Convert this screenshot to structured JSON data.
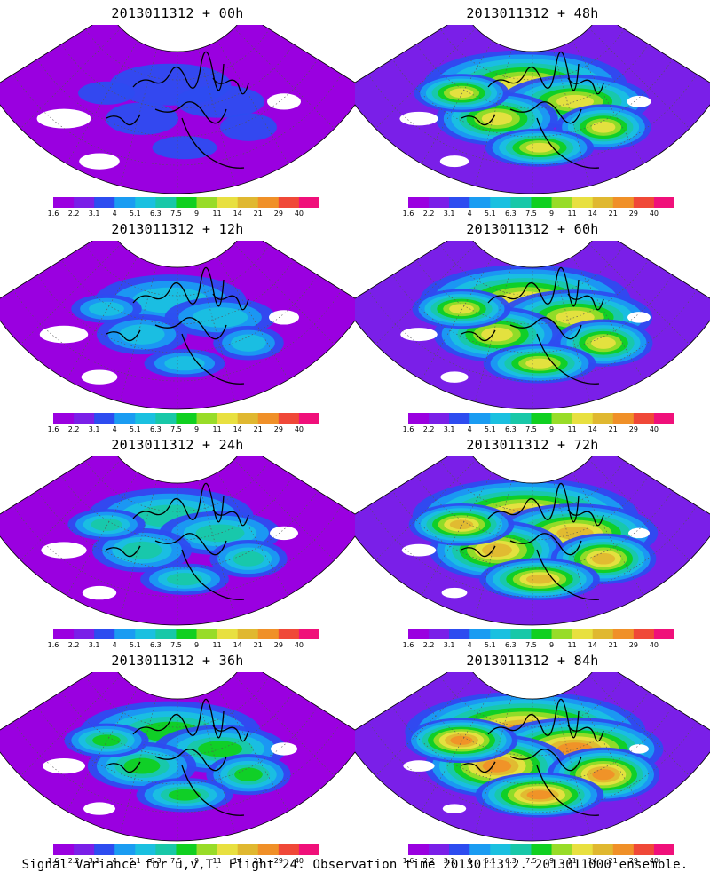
{
  "panels": [
    {
      "title": "2013011312 + 00h",
      "intensity": 0.1
    },
    {
      "title": "2013011312 + 12h",
      "intensity": 0.3
    },
    {
      "title": "2013011312 + 24h",
      "intensity": 0.4
    },
    {
      "title": "2013011312 + 36h",
      "intensity": 0.5
    },
    {
      "title": "2013011312 + 48h",
      "intensity": 0.65
    },
    {
      "title": "2013011312 + 60h",
      "intensity": 0.7
    },
    {
      "title": "2013011312 + 72h",
      "intensity": 0.8
    },
    {
      "title": "2013011312 + 84h",
      "intensity": 0.9
    }
  ],
  "colorbar": {
    "labels": [
      "1.6",
      "2.2",
      "3.1",
      "4",
      "5.1",
      "6.3",
      "7.5",
      "9",
      "11",
      "14",
      "21",
      "29",
      "40"
    ],
    "colors": [
      "#9a00e0",
      "#7a1fe8",
      "#2d4cf0",
      "#1a9cf2",
      "#1ac0e0",
      "#18c8a8",
      "#10d020",
      "#98dc28",
      "#e8e040",
      "#e0b830",
      "#f09028",
      "#f04838",
      "#f0107a"
    ]
  },
  "footer": "Signal Variance for u,v,T. Flight 24. Observation time 2013011312. 2013011000 ensemble."
}
